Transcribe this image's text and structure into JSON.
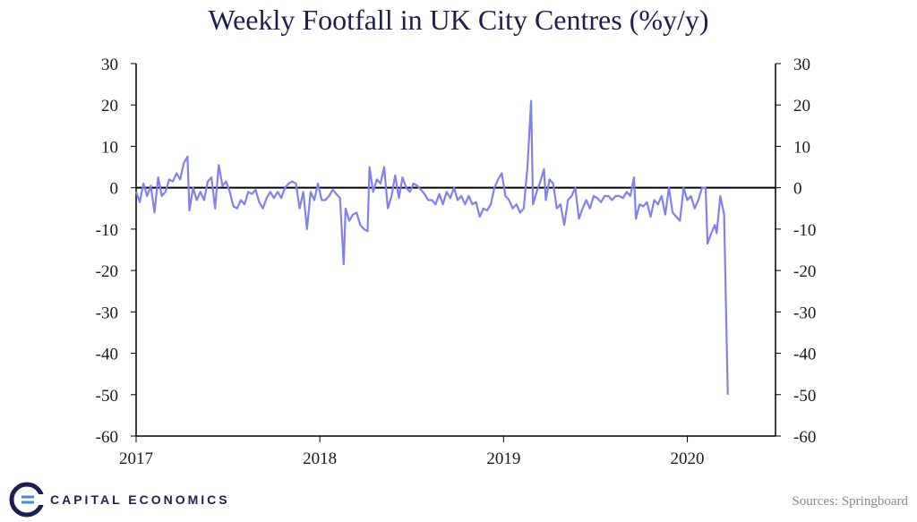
{
  "chart_data": {
    "type": "line",
    "title": "Weekly Footfall in UK City Centres (%y/y)",
    "xlabel": "",
    "ylabel": "",
    "xlim": [
      2017.0,
      2020.48
    ],
    "ylim": [
      -60,
      30
    ],
    "y_ticks": [
      30,
      20,
      10,
      0,
      -10,
      -20,
      -30,
      -40,
      -50,
      -60
    ],
    "x_ticks": [
      {
        "value": 2017,
        "label": "2017"
      },
      {
        "value": 2018,
        "label": "2018"
      },
      {
        "value": 2019,
        "label": "2019"
      },
      {
        "value": 2020,
        "label": "2020"
      }
    ],
    "secondary_y_axis": true,
    "zero_line": true,
    "grid": false,
    "series": [
      {
        "color": "#8080f0",
        "points": [
          [
            2017.0,
            -1
          ],
          [
            2017.02,
            -3.5
          ],
          [
            2017.04,
            1
          ],
          [
            2017.06,
            -2
          ],
          [
            2017.08,
            0.5
          ],
          [
            2017.1,
            -6
          ],
          [
            2017.12,
            2.5
          ],
          [
            2017.14,
            -2
          ],
          [
            2017.16,
            -1
          ],
          [
            2017.18,
            2
          ],
          [
            2017.2,
            1.5
          ],
          [
            2017.22,
            3.5
          ],
          [
            2017.24,
            2
          ],
          [
            2017.26,
            6
          ],
          [
            2017.28,
            7.5
          ],
          [
            2017.29,
            -5.5
          ],
          [
            2017.31,
            0
          ],
          [
            2017.33,
            -3
          ],
          [
            2017.35,
            -1
          ],
          [
            2017.37,
            -3
          ],
          [
            2017.39,
            1.5
          ],
          [
            2017.41,
            2.5
          ],
          [
            2017.43,
            -5
          ],
          [
            2017.45,
            5.5
          ],
          [
            2017.47,
            0.5
          ],
          [
            2017.49,
            1.5
          ],
          [
            2017.51,
            -1
          ],
          [
            2017.53,
            -4.5
          ],
          [
            2017.55,
            -5
          ],
          [
            2017.57,
            -3
          ],
          [
            2017.59,
            -4
          ],
          [
            2017.61,
            -1
          ],
          [
            2017.63,
            -1.5
          ],
          [
            2017.65,
            -0.5
          ],
          [
            2017.67,
            -3.5
          ],
          [
            2017.69,
            -5
          ],
          [
            2017.71,
            -2.5
          ],
          [
            2017.73,
            -1
          ],
          [
            2017.75,
            -2.5
          ],
          [
            2017.77,
            -1
          ],
          [
            2017.79,
            -2.5
          ],
          [
            2017.81,
            0
          ],
          [
            2017.83,
            1
          ],
          [
            2017.85,
            1.5
          ],
          [
            2017.87,
            1
          ],
          [
            2017.89,
            -5
          ],
          [
            2017.91,
            -1
          ],
          [
            2017.93,
            -10
          ],
          [
            2017.95,
            -1
          ],
          [
            2017.97,
            -3
          ],
          [
            2017.99,
            1
          ],
          [
            2018.01,
            -3
          ],
          [
            2018.03,
            -3
          ],
          [
            2018.05,
            -2
          ],
          [
            2018.07,
            -0.5
          ],
          [
            2018.09,
            -1.5
          ],
          [
            2018.11,
            -2.5
          ],
          [
            2018.13,
            -18.5
          ],
          [
            2018.14,
            -5
          ],
          [
            2018.16,
            -8
          ],
          [
            2018.18,
            -6.5
          ],
          [
            2018.2,
            -6
          ],
          [
            2018.22,
            -9
          ],
          [
            2018.24,
            -10
          ],
          [
            2018.26,
            -10.5
          ],
          [
            2018.27,
            5
          ],
          [
            2018.29,
            -1
          ],
          [
            2018.31,
            2
          ],
          [
            2018.33,
            1
          ],
          [
            2018.35,
            5
          ],
          [
            2018.37,
            -5
          ],
          [
            2018.39,
            -2
          ],
          [
            2018.41,
            3
          ],
          [
            2018.43,
            -2.5
          ],
          [
            2018.45,
            2.5
          ],
          [
            2018.47,
            0
          ],
          [
            2018.49,
            -1
          ],
          [
            2018.51,
            1
          ],
          [
            2018.53,
            0.5
          ],
          [
            2018.55,
            -0.5
          ],
          [
            2018.57,
            -1.5
          ],
          [
            2018.59,
            -3
          ],
          [
            2018.61,
            -3
          ],
          [
            2018.63,
            -4
          ],
          [
            2018.65,
            -1.5
          ],
          [
            2018.67,
            -4
          ],
          [
            2018.69,
            -1
          ],
          [
            2018.71,
            -2.5
          ],
          [
            2018.73,
            0
          ],
          [
            2018.75,
            -3
          ],
          [
            2018.77,
            -2
          ],
          [
            2018.79,
            -4
          ],
          [
            2018.81,
            -2
          ],
          [
            2018.83,
            -4
          ],
          [
            2018.85,
            -3.5
          ],
          [
            2018.87,
            -7
          ],
          [
            2018.89,
            -5
          ],
          [
            2018.91,
            -5.5
          ],
          [
            2018.93,
            -4
          ],
          [
            2018.95,
            0
          ],
          [
            2018.97,
            2
          ],
          [
            2018.99,
            3.5
          ],
          [
            2019.01,
            -2
          ],
          [
            2019.03,
            -3
          ],
          [
            2019.05,
            -5
          ],
          [
            2019.07,
            -4
          ],
          [
            2019.09,
            -6
          ],
          [
            2019.11,
            -5
          ],
          [
            2019.13,
            5
          ],
          [
            2019.15,
            21
          ],
          [
            2019.16,
            -4
          ],
          [
            2019.18,
            -1
          ],
          [
            2019.2,
            1.5
          ],
          [
            2019.22,
            4.5
          ],
          [
            2019.23,
            -3
          ],
          [
            2019.25,
            2
          ],
          [
            2019.27,
            1
          ],
          [
            2019.29,
            -5
          ],
          [
            2019.31,
            -4
          ],
          [
            2019.33,
            -9
          ],
          [
            2019.35,
            -3
          ],
          [
            2019.37,
            -2
          ],
          [
            2019.39,
            0
          ],
          [
            2019.41,
            -7.5
          ],
          [
            2019.43,
            -5
          ],
          [
            2019.45,
            -3
          ],
          [
            2019.47,
            -5
          ],
          [
            2019.49,
            -2
          ],
          [
            2019.51,
            -2.5
          ],
          [
            2019.53,
            -3.5
          ],
          [
            2019.55,
            -2
          ],
          [
            2019.57,
            -2
          ],
          [
            2019.59,
            -3
          ],
          [
            2019.61,
            -2
          ],
          [
            2019.63,
            -2
          ],
          [
            2019.65,
            -2.5
          ],
          [
            2019.67,
            -1
          ],
          [
            2019.69,
            -2
          ],
          [
            2019.71,
            2.5
          ],
          [
            2019.72,
            -7.5
          ],
          [
            2019.74,
            -4
          ],
          [
            2019.76,
            -4.5
          ],
          [
            2019.78,
            -3.5
          ],
          [
            2019.8,
            -7
          ],
          [
            2019.82,
            -3
          ],
          [
            2019.84,
            -4
          ],
          [
            2019.86,
            -2
          ],
          [
            2019.88,
            -6.5
          ],
          [
            2019.9,
            0
          ],
          [
            2019.92,
            -6
          ],
          [
            2019.94,
            -7
          ],
          [
            2019.96,
            -8
          ],
          [
            2019.98,
            0
          ],
          [
            2020.0,
            -3
          ],
          [
            2020.02,
            -2
          ],
          [
            2020.04,
            -5
          ],
          [
            2020.06,
            -3
          ],
          [
            2020.08,
            0
          ],
          [
            2020.1,
            0
          ],
          [
            2020.11,
            -13.5
          ],
          [
            2020.13,
            -11
          ],
          [
            2020.15,
            -9
          ],
          [
            2020.16,
            -11
          ],
          [
            2020.18,
            -2
          ],
          [
            2020.2,
            -6.5
          ],
          [
            2020.22,
            -50
          ]
        ]
      }
    ]
  },
  "brand": {
    "name": "CAPITAL ECONOMICS",
    "color": "#1f1f4f"
  },
  "source": "Sources: Springboard"
}
